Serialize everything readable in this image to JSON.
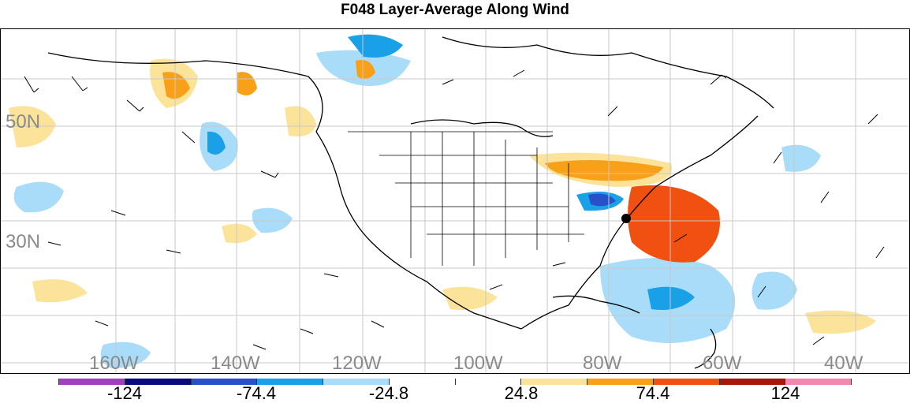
{
  "title": "F048 Layer-Average Along Wind",
  "map": {
    "lat_labels": [
      "50N",
      "30N"
    ],
    "lon_labels": [
      "160W",
      "140W",
      "120W",
      "100W",
      "80W",
      "60W",
      "40W"
    ]
  },
  "colorbar": {
    "colors": [
      "#a040c0",
      "#0a0a80",
      "#2850c8",
      "#1aa0e6",
      "#a8dcf8",
      "#ffffff",
      "#ffffff",
      "#fbe39a",
      "#f8a018",
      "#f05010",
      "#a81808",
      "#f088b0"
    ],
    "tick_labels": [
      "-124",
      "-74.4",
      "-24.8",
      "24.8",
      "74.4",
      "124"
    ]
  }
}
